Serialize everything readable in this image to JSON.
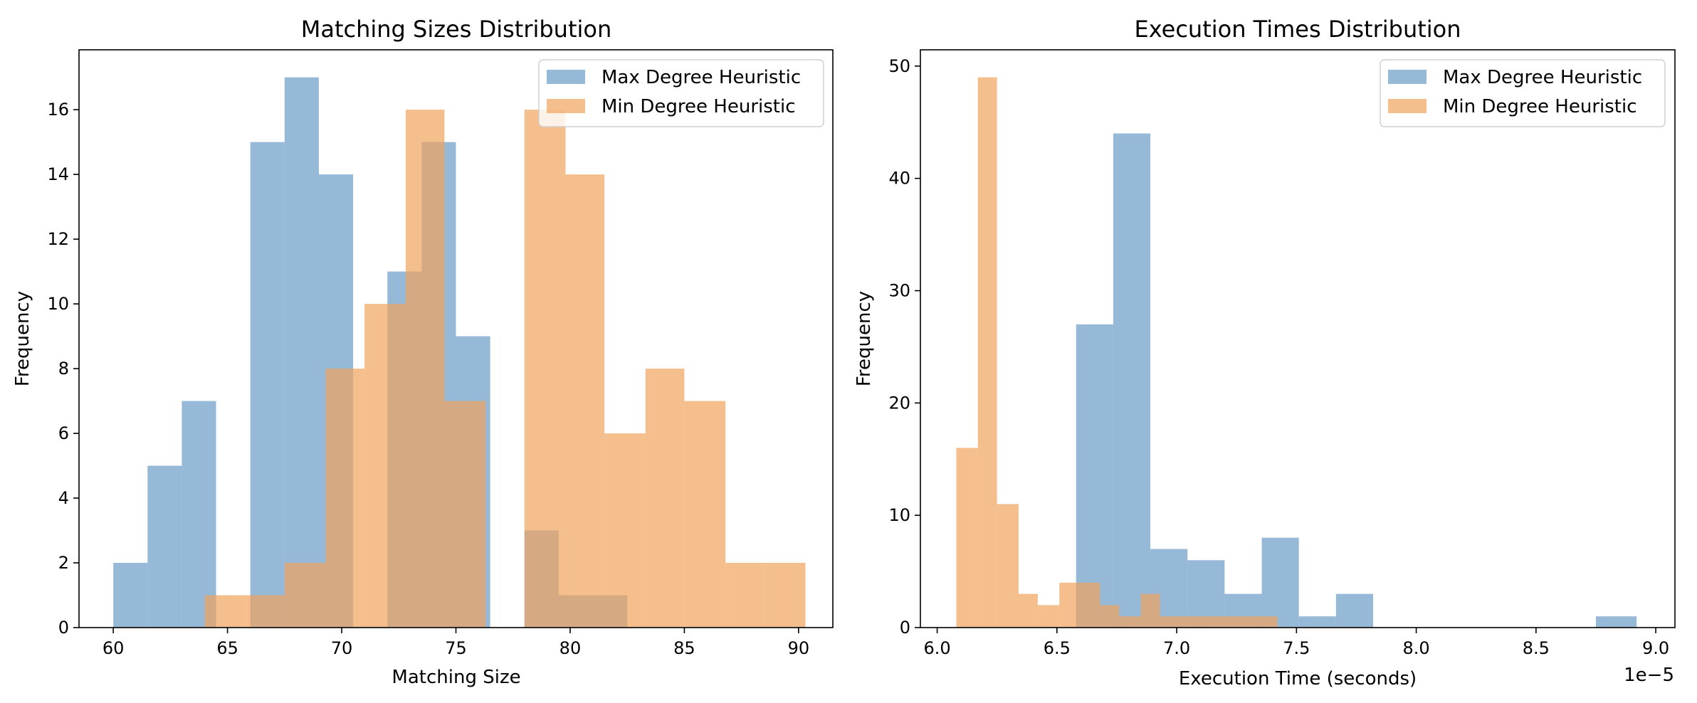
{
  "colors": {
    "max_degree": "#6b9bc7",
    "min_degree": "#f0a35c",
    "bar_alpha": 0.7,
    "axes": "#000000",
    "background": "#ffffff"
  },
  "chart_data": [
    {
      "type": "bar",
      "chart_kind": "histogram (overlaid)",
      "title": "Matching Sizes Distribution",
      "xlabel": "Matching Size",
      "ylabel": "Frequency",
      "xlim": [
        58.5,
        91.5
      ],
      "ylim": [
        0,
        17.85
      ],
      "xticks": [
        60,
        65,
        70,
        75,
        80,
        85,
        90
      ],
      "xtick_labels": [
        "60",
        "65",
        "70",
        "75",
        "80",
        "85",
        "90"
      ],
      "yticks": [
        0,
        2,
        4,
        6,
        8,
        10,
        12,
        14,
        16
      ],
      "ytick_labels": [
        "0",
        "2",
        "4",
        "6",
        "8",
        "10",
        "12",
        "14",
        "16"
      ],
      "grid": false,
      "legend_position": "upper right",
      "series": [
        {
          "name": "Max Degree Heuristic",
          "color_key": "max_degree",
          "bins": [
            {
              "x0": 60.0,
              "x1": 61.5,
              "count": 2
            },
            {
              "x0": 61.5,
              "x1": 63.0,
              "count": 5
            },
            {
              "x0": 63.0,
              "x1": 64.5,
              "count": 7
            },
            {
              "x0": 64.5,
              "x1": 66.0,
              "count": 0
            },
            {
              "x0": 66.0,
              "x1": 67.5,
              "count": 15
            },
            {
              "x0": 67.5,
              "x1": 69.0,
              "count": 17
            },
            {
              "x0": 69.0,
              "x1": 70.5,
              "count": 14
            },
            {
              "x0": 70.5,
              "x1": 72.0,
              "count": 0
            },
            {
              "x0": 72.0,
              "x1": 73.5,
              "count": 11
            },
            {
              "x0": 73.5,
              "x1": 75.0,
              "count": 15
            },
            {
              "x0": 75.0,
              "x1": 76.5,
              "count": 9
            },
            {
              "x0": 76.5,
              "x1": 78.0,
              "count": 0
            },
            {
              "x0": 78.0,
              "x1": 79.5,
              "count": 3
            },
            {
              "x0": 79.5,
              "x1": 81.0,
              "count": 1
            },
            {
              "x0": 81.0,
              "x1": 82.5,
              "count": 1
            }
          ]
        },
        {
          "name": "Min Degree Heuristic",
          "color_key": "min_degree",
          "bins": [
            {
              "x0": 64.0,
              "x1": 65.8,
              "count": 1
            },
            {
              "x0": 65.8,
              "x1": 67.5,
              "count": 1
            },
            {
              "x0": 67.5,
              "x1": 69.3,
              "count": 2
            },
            {
              "x0": 69.3,
              "x1": 71.0,
              "count": 8
            },
            {
              "x0": 71.0,
              "x1": 72.8,
              "count": 10
            },
            {
              "x0": 72.8,
              "x1": 74.5,
              "count": 16
            },
            {
              "x0": 74.5,
              "x1": 76.3,
              "count": 7
            },
            {
              "x0": 76.3,
              "x1": 78.0,
              "count": 0
            },
            {
              "x0": 78.0,
              "x1": 79.8,
              "count": 16
            },
            {
              "x0": 79.8,
              "x1": 81.5,
              "count": 14
            },
            {
              "x0": 81.5,
              "x1": 83.3,
              "count": 6
            },
            {
              "x0": 83.3,
              "x1": 85.0,
              "count": 8
            },
            {
              "x0": 85.0,
              "x1": 86.8,
              "count": 7
            },
            {
              "x0": 86.8,
              "x1": 88.5,
              "count": 2
            },
            {
              "x0": 88.5,
              "x1": 90.3,
              "count": 2
            }
          ]
        }
      ]
    },
    {
      "type": "bar",
      "chart_kind": "histogram (overlaid)",
      "title": "Execution Times Distribution",
      "xlabel": "Execution Time (seconds)",
      "ylabel": "Frequency",
      "axis_offset_label": "1e−5",
      "xlim": [
        5.93,
        9.08
      ],
      "ylim": [
        0,
        51.45
      ],
      "xticks": [
        6.0,
        6.5,
        7.0,
        7.5,
        8.0,
        8.5,
        9.0
      ],
      "xtick_labels": [
        "6.0",
        "6.5",
        "7.0",
        "7.5",
        "8.0",
        "8.5",
        "9.0"
      ],
      "yticks": [
        0,
        10,
        20,
        30,
        40,
        50
      ],
      "ytick_labels": [
        "0",
        "10",
        "20",
        "30",
        "40",
        "50"
      ],
      "grid": false,
      "legend_position": "upper right",
      "series": [
        {
          "name": "Max Degree Heuristic",
          "color_key": "max_degree",
          "bins": [
            {
              "x0": 6.58,
              "x1": 6.735,
              "count": 27
            },
            {
              "x0": 6.735,
              "x1": 6.89,
              "count": 44
            },
            {
              "x0": 6.89,
              "x1": 7.045,
              "count": 7
            },
            {
              "x0": 7.045,
              "x1": 7.2,
              "count": 6
            },
            {
              "x0": 7.2,
              "x1": 7.355,
              "count": 3
            },
            {
              "x0": 7.355,
              "x1": 7.51,
              "count": 8
            },
            {
              "x0": 7.51,
              "x1": 7.665,
              "count": 1
            },
            {
              "x0": 7.665,
              "x1": 7.82,
              "count": 3
            },
            {
              "x0": 7.82,
              "x1": 7.975,
              "count": 0
            },
            {
              "x0": 7.975,
              "x1": 8.13,
              "count": 0
            },
            {
              "x0": 8.13,
              "x1": 8.285,
              "count": 0
            },
            {
              "x0": 8.285,
              "x1": 8.44,
              "count": 0
            },
            {
              "x0": 8.44,
              "x1": 8.595,
              "count": 0
            },
            {
              "x0": 8.595,
              "x1": 8.75,
              "count": 0
            },
            {
              "x0": 8.75,
              "x1": 8.92,
              "count": 1
            }
          ]
        },
        {
          "name": "Min Degree Heuristic",
          "color_key": "min_degree",
          "bins": [
            {
              "x0": 6.08,
              "x1": 6.17,
              "count": 16
            },
            {
              "x0": 6.17,
              "x1": 6.25,
              "count": 49
            },
            {
              "x0": 6.25,
              "x1": 6.34,
              "count": 11
            },
            {
              "x0": 6.34,
              "x1": 6.42,
              "count": 3
            },
            {
              "x0": 6.42,
              "x1": 6.51,
              "count": 2
            },
            {
              "x0": 6.51,
              "x1": 6.59,
              "count": 4
            },
            {
              "x0": 6.59,
              "x1": 6.68,
              "count": 4
            },
            {
              "x0": 6.68,
              "x1": 6.76,
              "count": 2
            },
            {
              "x0": 6.76,
              "x1": 6.85,
              "count": 1
            },
            {
              "x0": 6.85,
              "x1": 6.93,
              "count": 3
            },
            {
              "x0": 6.93,
              "x1": 7.02,
              "count": 1
            },
            {
              "x0": 7.02,
              "x1": 7.1,
              "count": 1
            },
            {
              "x0": 7.1,
              "x1": 7.19,
              "count": 1
            },
            {
              "x0": 7.19,
              "x1": 7.27,
              "count": 1
            },
            {
              "x0": 7.27,
              "x1": 7.36,
              "count": 1
            },
            {
              "x0": 7.36,
              "x1": 7.42,
              "count": 1
            }
          ]
        }
      ]
    }
  ]
}
